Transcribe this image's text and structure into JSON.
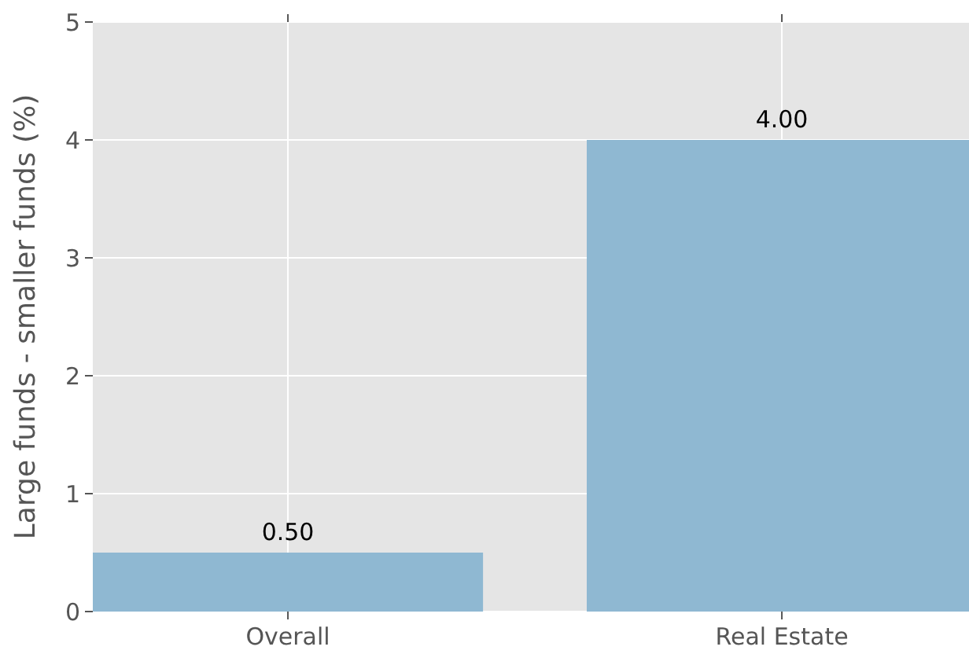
{
  "chart_data": {
    "type": "bar",
    "ylabel": "Large funds - smaller funds (%)",
    "categories": [
      "Overall",
      "Real Estate"
    ],
    "values": [
      0.5,
      4.0
    ],
    "value_labels": [
      "0.50",
      "4.00"
    ],
    "color": "#8fb8d2",
    "ylim": [
      0,
      5
    ],
    "yticks": [
      0,
      1,
      2,
      3,
      4,
      5
    ],
    "grid": true
  }
}
